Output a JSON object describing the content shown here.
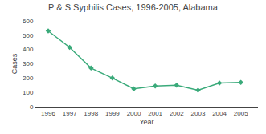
{
  "chart_data": {
    "type": "line",
    "title": "P & S Syphilis Cases, 1996-2005, Alabama",
    "xlabel": "Year",
    "ylabel": "Cases",
    "x": [
      1996,
      1997,
      1998,
      1999,
      2000,
      2001,
      2002,
      2003,
      2004,
      2005
    ],
    "values": [
      530,
      415,
      270,
      200,
      125,
      145,
      150,
      115,
      165,
      170
    ],
    "color": "#3aaa7a",
    "marker": "diamond",
    "xlim": [
      1995.4,
      2005.8
    ],
    "xticks": [
      1996,
      1997,
      1998,
      1999,
      2000,
      2001,
      2002,
      2003,
      2004,
      2005
    ],
    "ylim": [
      0,
      600
    ],
    "yticks": [
      0,
      100,
      200,
      300,
      400,
      500,
      600
    ],
    "grid": false
  }
}
